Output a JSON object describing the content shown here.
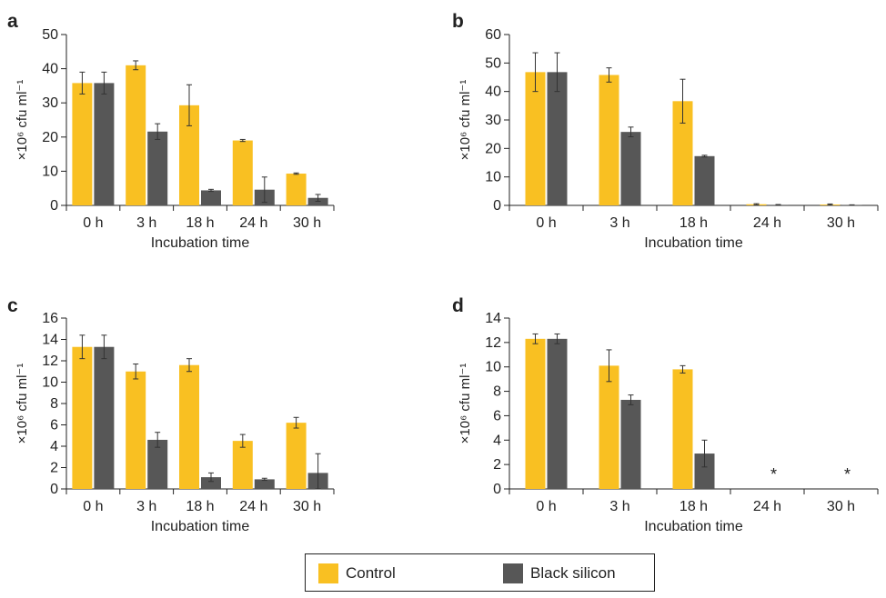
{
  "colors": {
    "control": "#F9C022",
    "black_silicon": "#575757",
    "axis": "#222222"
  },
  "legend": {
    "control_label": "Control",
    "black_silicon_label": "Black silicon"
  },
  "chart_data": [
    {
      "panel": "a",
      "type": "bar",
      "categories": [
        "0 h",
        "3 h",
        "18 h",
        "24 h",
        "30 h"
      ],
      "xlabel": "Incubation time",
      "ylabel": "×10⁶ cfu ml⁻¹",
      "ylim": [
        0,
        50
      ],
      "yticks": [
        0,
        10,
        20,
        30,
        40,
        50
      ],
      "series": [
        {
          "name": "Control",
          "values": [
            35.8,
            41.0,
            29.3,
            19.0,
            9.3
          ],
          "errors": [
            3.2,
            1.3,
            6.0,
            0.3,
            0.2
          ]
        },
        {
          "name": "Black silicon",
          "values": [
            35.8,
            21.6,
            4.4,
            4.6,
            2.2
          ],
          "errors": [
            3.2,
            2.3,
            0.3,
            3.7,
            1.0
          ]
        }
      ],
      "annotations": []
    },
    {
      "panel": "b",
      "type": "bar",
      "categories": [
        "0 h",
        "3 h",
        "18 h",
        "24 h",
        "30 h"
      ],
      "xlabel": "Incubation time",
      "ylabel": "×10⁶ cfu ml⁻¹",
      "ylim": [
        0,
        60
      ],
      "yticks": [
        0,
        10,
        20,
        30,
        40,
        50,
        60
      ],
      "series": [
        {
          "name": "Control",
          "values": [
            46.8,
            45.8,
            36.6,
            0.4,
            0.3
          ],
          "errors": [
            6.8,
            2.5,
            7.7,
            0.2,
            0.2
          ]
        },
        {
          "name": "Black silicon",
          "values": [
            46.8,
            25.8,
            17.3,
            0.2,
            0.1
          ],
          "errors": [
            6.8,
            1.7,
            0.3,
            0.1,
            0.1
          ]
        }
      ],
      "annotations": []
    },
    {
      "panel": "c",
      "type": "bar",
      "categories": [
        "0 h",
        "3 h",
        "18 h",
        "24 h",
        "30 h"
      ],
      "xlabel": "Incubation time",
      "ylabel": "×10⁶ cfu ml⁻¹",
      "ylim": [
        0,
        16
      ],
      "yticks": [
        0,
        2,
        4,
        6,
        8,
        10,
        12,
        14,
        16
      ],
      "series": [
        {
          "name": "Control",
          "values": [
            13.3,
            11.0,
            11.6,
            4.5,
            6.2
          ],
          "errors": [
            1.1,
            0.7,
            0.6,
            0.6,
            0.5
          ]
        },
        {
          "name": "Black silicon",
          "values": [
            13.3,
            4.6,
            1.1,
            0.9,
            1.5
          ],
          "errors": [
            1.1,
            0.7,
            0.4,
            0.1,
            1.8
          ]
        }
      ],
      "annotations": []
    },
    {
      "panel": "d",
      "type": "bar",
      "categories": [
        "0 h",
        "3 h",
        "18 h",
        "24 h",
        "30 h"
      ],
      "xlabel": "Incubation time",
      "ylabel": "×10⁶ cfu ml⁻¹",
      "ylim": [
        0,
        14
      ],
      "yticks": [
        0,
        2,
        4,
        6,
        8,
        10,
        12,
        14
      ],
      "series": [
        {
          "name": "Control",
          "values": [
            12.3,
            10.1,
            9.8,
            0,
            0
          ],
          "errors": [
            0.4,
            1.3,
            0.3,
            0,
            0
          ]
        },
        {
          "name": "Black silicon",
          "values": [
            12.3,
            7.3,
            2.9,
            0,
            0
          ],
          "errors": [
            0.4,
            0.4,
            1.1,
            0,
            0
          ]
        }
      ],
      "annotations": [
        {
          "category": "24 h",
          "text": "*"
        },
        {
          "category": "30 h",
          "text": "*"
        }
      ]
    }
  ]
}
